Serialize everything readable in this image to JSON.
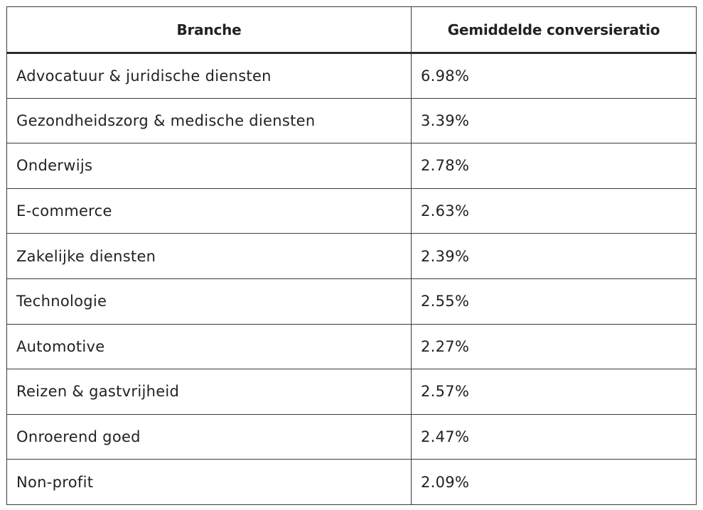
{
  "table": {
    "headers": {
      "branche": "Branche",
      "conversion": "Gemiddelde conversieratio"
    },
    "rows": [
      {
        "branche": "Advocatuur & juridische diensten",
        "rate": "6.98%"
      },
      {
        "branche": "Gezondheidszorg & medische diensten",
        "rate": "3.39%"
      },
      {
        "branche": "Onderwijs",
        "rate": "2.78%"
      },
      {
        "branche": "E-commerce",
        "rate": "2.63%"
      },
      {
        "branche": "Zakelijke diensten",
        "rate": "2.39%"
      },
      {
        "branche": "Technologie",
        "rate": "2.55%"
      },
      {
        "branche": "Automotive",
        "rate": "2.27%"
      },
      {
        "branche": "Reizen & gastvrijheid",
        "rate": "2.57%"
      },
      {
        "branche": "Onroerend goed",
        "rate": "2.47%"
      },
      {
        "branche": "Non-profit",
        "rate": "2.09%"
      }
    ]
  }
}
